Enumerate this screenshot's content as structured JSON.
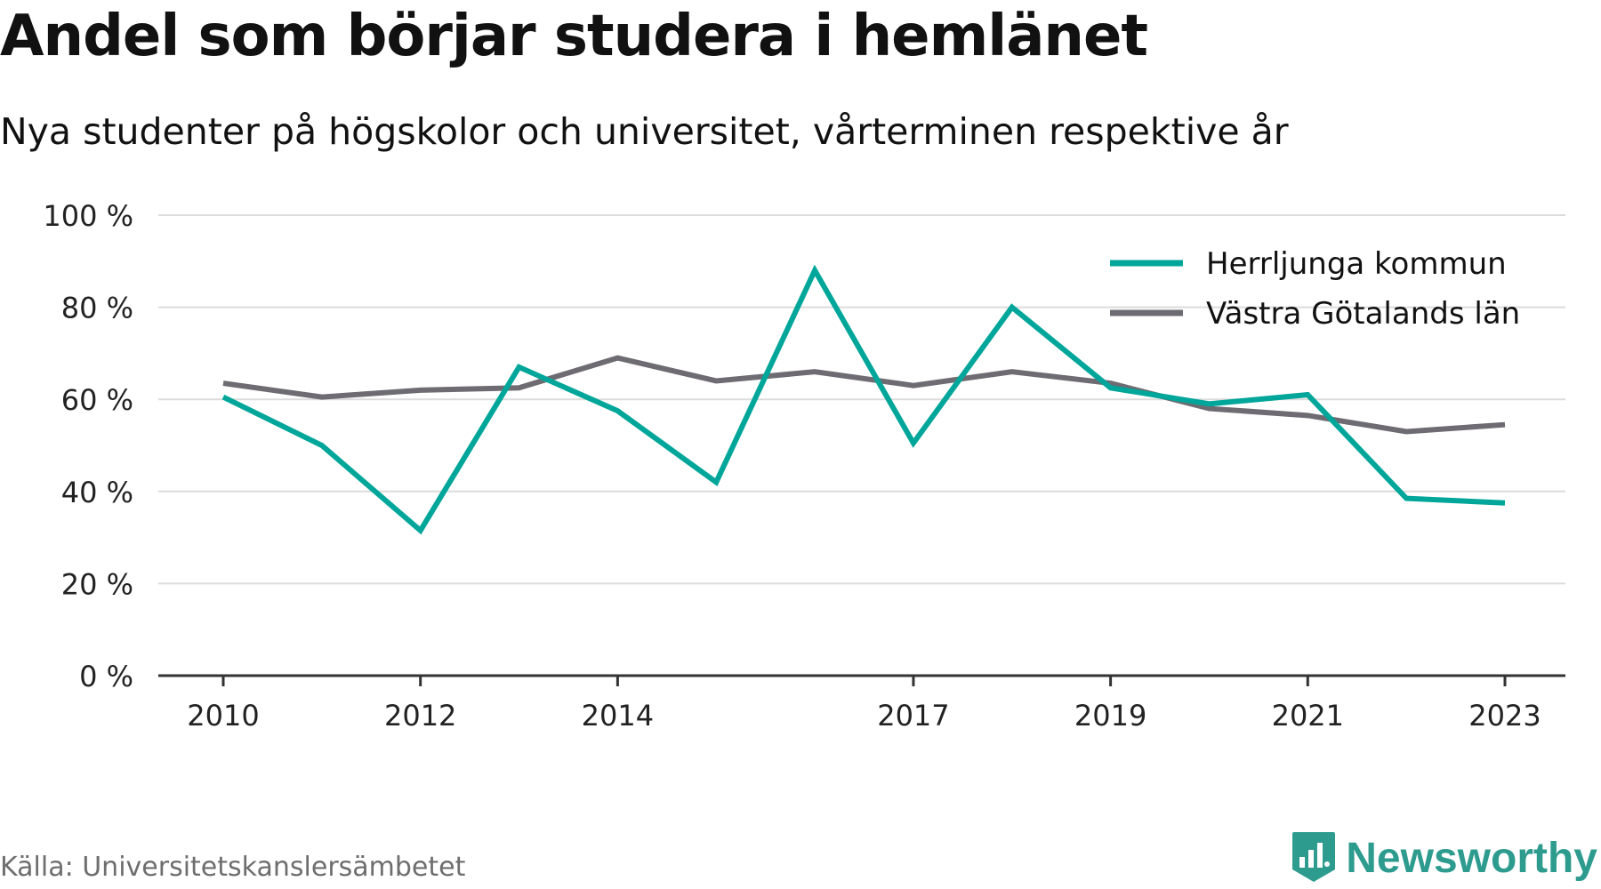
{
  "title": "Andel som börjar studera i hemlänet",
  "subtitle": "Nya studenter på högskolor och universitet, vårterminen respektive år",
  "source": "Källa: Universitetskanslersämbetet",
  "brand": {
    "name": "Newsworthy",
    "color": "#2e9b8f"
  },
  "chart_data": {
    "type": "line",
    "title": "Andel som börjar studera i hemlänet",
    "subtitle": "Nya studenter på högskolor och universitet, vårterminen respektive år",
    "xlabel": "",
    "ylabel": "",
    "x": [
      2010,
      2011,
      2012,
      2013,
      2014,
      2015,
      2016,
      2017,
      2018,
      2019,
      2020,
      2021,
      2022,
      2023
    ],
    "xticks": [
      2010,
      2012,
      2014,
      2017,
      2019,
      2021,
      2023
    ],
    "ylim": [
      0,
      100
    ],
    "yticks": [
      0,
      20,
      40,
      60,
      80,
      100
    ],
    "ytick_labels": [
      "0 %",
      "20 %",
      "40 %",
      "60 %",
      "80 %",
      "100 %"
    ],
    "grid": true,
    "legend_position": "top-right",
    "series": [
      {
        "name": "Herrljunga kommun",
        "color": "#00a69a",
        "values": [
          60.5,
          50,
          31.5,
          67,
          57.5,
          42,
          88,
          50.5,
          80,
          62.5,
          59,
          61,
          38.5,
          37.5
        ]
      },
      {
        "name": "Västra Götalands län",
        "color": "#6e6c72",
        "values": [
          63.5,
          60.5,
          62,
          62.5,
          69,
          64,
          66,
          63,
          66,
          63.5,
          58,
          56.5,
          53,
          54.5
        ]
      }
    ]
  }
}
